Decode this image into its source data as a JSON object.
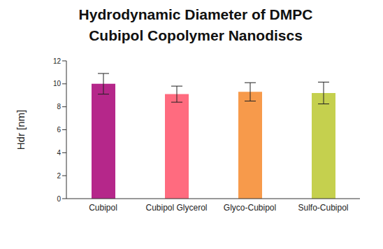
{
  "chart_data": {
    "type": "bar",
    "title": "Hydrodynamic Diameter of DMPC Cubipol Copolymer Nanodiscs",
    "y_label": "Hdr [nm]",
    "categories": [
      "Cubipol",
      "Cubipol Glycerol",
      "Glyco-Cubipol",
      "Sulfo-Cubipol"
    ],
    "values": [
      10.0,
      9.1,
      9.3,
      9.2
    ],
    "errors": [
      0.9,
      0.7,
      0.8,
      0.95
    ],
    "colors": [
      "#b5278a",
      "#ff6b7f",
      "#f79a4b",
      "#c5d04e"
    ],
    "ylim": [
      0,
      12
    ],
    "yticks": [
      0,
      2,
      4,
      6,
      8,
      10,
      12
    ],
    "grid": false
  }
}
